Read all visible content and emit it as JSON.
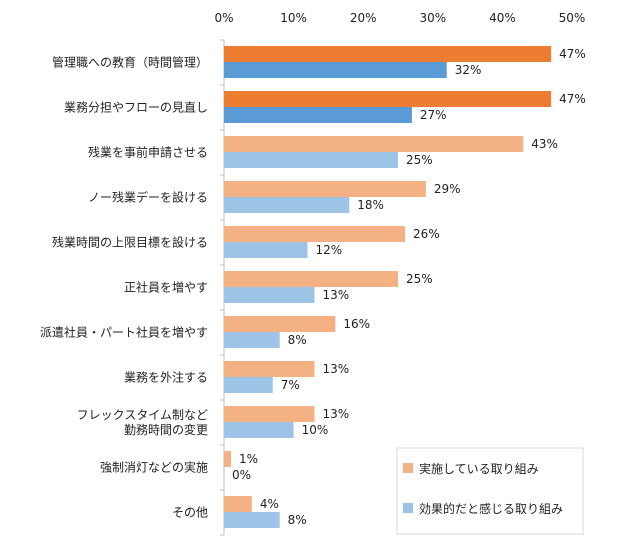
{
  "chart_data": {
    "type": "bar",
    "orientation": "horizontal",
    "categories": [
      "管理職への教育（時間管理）",
      "業務分担やフローの見直し",
      "残業を事前申請させる",
      "ノー残業デーを設ける",
      "残業時間の上限目標を設ける",
      "正社員を増やす",
      "派遣社員・パート社員を増やす",
      "業務を外注する",
      "フレックスタイム制など\n勤務時間の変更",
      "強制消灯などの実施",
      "その他"
    ],
    "series": [
      {
        "name": "実施している取り組み",
        "values": [
          47,
          47,
          43,
          29,
          26,
          25,
          16,
          13,
          13,
          1,
          4
        ]
      },
      {
        "name": "効果的だと感じる取り組み",
        "values": [
          32,
          27,
          25,
          18,
          12,
          13,
          8,
          7,
          10,
          0,
          8
        ]
      }
    ],
    "xlim": [
      0,
      50
    ],
    "xticks": [
      "0%",
      "10%",
      "20%",
      "30%",
      "40%",
      "50%"
    ],
    "value_suffix": "%",
    "highlight_count": 2,
    "colors": {
      "primary_highlight": "#ED7D31",
      "primary": "#F4B183",
      "secondary_highlight": "#5B9BD5",
      "secondary": "#9DC3E6",
      "axis": "#BFBFBF"
    },
    "legend_position": "bottom-right",
    "grid": false
  }
}
